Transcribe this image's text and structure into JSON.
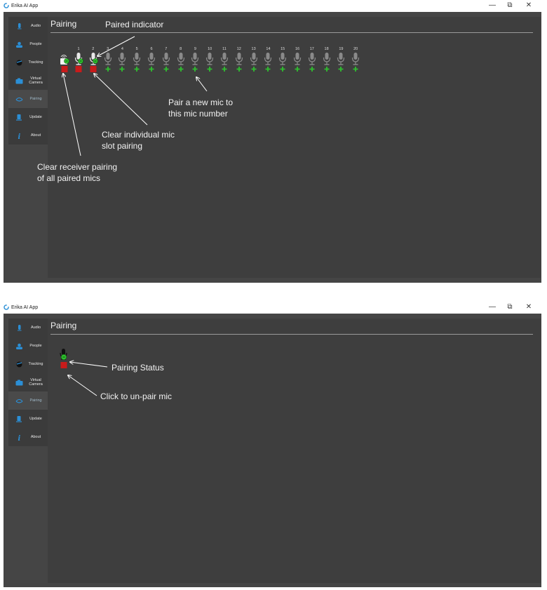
{
  "app_title": "Erika AI App",
  "window_controls": {
    "minimize": "—",
    "restore": "⧉",
    "close": "✕"
  },
  "sidebar": {
    "items": [
      {
        "label": "Audio",
        "icon": "microphone-icon",
        "active": false
      },
      {
        "label": "People",
        "icon": "people-icon",
        "active": false
      },
      {
        "label": "Tracking",
        "icon": "tracking-icon",
        "active": false
      },
      {
        "label": "Virtual Camera",
        "icon": "camera-icon",
        "active": false
      },
      {
        "label": "Pairing",
        "icon": "pairing-icon",
        "active": true
      },
      {
        "label": "Update",
        "icon": "update-icon",
        "active": false
      },
      {
        "label": "About",
        "icon": "info-icon",
        "active": false
      }
    ]
  },
  "page_title": "Pairing",
  "receiver": {
    "icon": "receiver-icon",
    "status": "paired"
  },
  "mic_slots": [
    {
      "number": "1",
      "paired": true
    },
    {
      "number": "2",
      "paired": true
    },
    {
      "number": "3",
      "paired": false
    },
    {
      "number": "4",
      "paired": false
    },
    {
      "number": "5",
      "paired": false
    },
    {
      "number": "6",
      "paired": false
    },
    {
      "number": "7",
      "paired": false
    },
    {
      "number": "8",
      "paired": false
    },
    {
      "number": "9",
      "paired": false
    },
    {
      "number": "10",
      "paired": false
    },
    {
      "number": "11",
      "paired": false
    },
    {
      "number": "12",
      "paired": false
    },
    {
      "number": "13",
      "paired": false
    },
    {
      "number": "14",
      "paired": false
    },
    {
      "number": "15",
      "paired": false
    },
    {
      "number": "16",
      "paired": false
    },
    {
      "number": "17",
      "paired": false
    },
    {
      "number": "18",
      "paired": false
    },
    {
      "number": "19",
      "paired": false
    },
    {
      "number": "20",
      "paired": false
    }
  ],
  "annotations_top": {
    "paired_indicator": "Paired indicator",
    "pair_new": "Pair a new mic to\nthis mic number",
    "clear_individual": "Clear individual mic\nslot pairing",
    "clear_receiver": "Clear receiver pairing\nof all paired mics"
  },
  "annotations_bottom": {
    "pairing_status": "Pairing Status",
    "unpair": "Click to un-pair mic"
  },
  "colors": {
    "green": "#2fbf2f",
    "red": "#c81b1b",
    "bg": "#454545",
    "panel": "#3e3e3e",
    "sidebar": "#3b3b3b"
  }
}
